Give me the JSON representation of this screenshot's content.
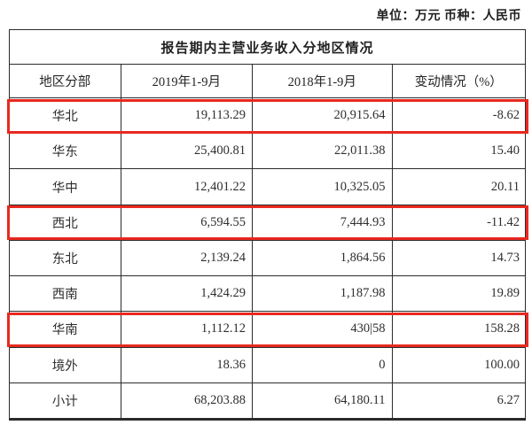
{
  "unit_note": "单位：万元  币种：人民币",
  "colors": {
    "highlight_red": "#e8291f",
    "table_border": "#2b2b2b",
    "text": "#2e2e2e"
  },
  "table": {
    "title": "报告期内主营业务收入分地区情况",
    "headers": [
      "地区分部",
      "2019年1-9月",
      "2018年1-9月",
      "变动情况（%）"
    ],
    "rows": [
      {
        "region": "华北",
        "y2019": "19,113.29",
        "y2018": "20,915.64",
        "change": "-8.62",
        "highlighted": true
      },
      {
        "region": "华东",
        "y2019": "25,400.81",
        "y2018": "22,011.38",
        "change": "15.40",
        "highlighted": false
      },
      {
        "region": "华中",
        "y2019": "12,401.22",
        "y2018": "10,325.05",
        "change": "20.11",
        "highlighted": false
      },
      {
        "region": "西北",
        "y2019": "6,594.55",
        "y2018": "7,444.93",
        "change": "-11.42",
        "highlighted": true
      },
      {
        "region": "东北",
        "y2019": "2,139.24",
        "y2018": "1,864.56",
        "change": "14.73",
        "highlighted": false
      },
      {
        "region": "西南",
        "y2019": "1,424.29",
        "y2018": "1,187.98",
        "change": "19.89",
        "highlighted": false
      },
      {
        "region": "华南",
        "y2019": "1,112.12",
        "y2018": "430|58",
        "change": "158.28",
        "highlighted": true
      },
      {
        "region": "境外",
        "y2019": "18.36",
        "y2018": "0",
        "change": "100.00",
        "highlighted": false
      },
      {
        "region": "小计",
        "y2019": "68,203.88",
        "y2018": "64,180.11",
        "change": "6.27",
        "highlighted": false
      }
    ]
  }
}
